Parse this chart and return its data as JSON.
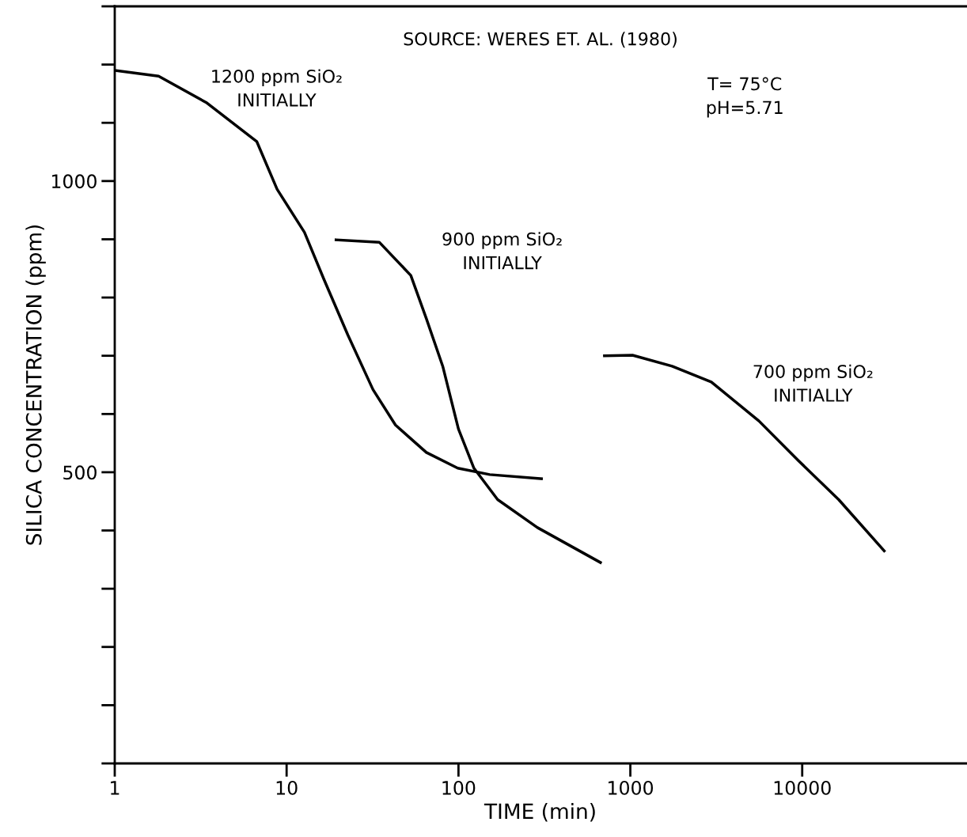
{
  "chart_data": {
    "type": "line",
    "xlabel": "TIME (min)",
    "ylabel": "SILICA CONCENTRATION (ppm)",
    "log": "x",
    "xlim": [
      1,
      90000
    ],
    "xticks": [
      1,
      10,
      100,
      1000,
      10000
    ],
    "ylim": [
      0,
      1300
    ],
    "yticks": [
      500,
      1000
    ],
    "grid": false,
    "marker": "none",
    "line_style": "solid",
    "series": [
      {
        "color": "#000000",
        "x": [
          1,
          1.8,
          3.4,
          6.7,
          8.8,
          12.7,
          16.5,
          22.7,
          31.8,
          43,
          65,
          99,
          152,
          304
        ],
        "values": [
          1190,
          1180,
          1135,
          1068,
          986,
          912,
          831,
          736,
          642,
          581,
          534,
          507,
          496,
          489
        ]
      },
      {
        "color": "#000000",
        "x": [
          19.4,
          34.6,
          52.8,
          65,
          81,
          100,
          123,
          169,
          288,
          670
        ],
        "values": [
          899,
          895,
          838,
          764,
          682,
          574,
          507,
          453,
          405,
          345
        ]
      },
      {
        "color": "#000000",
        "x": [
          707,
          1030,
          1750,
          2960,
          5600,
          9500,
          16300,
          30000
        ],
        "values": [
          700,
          701,
          682,
          655,
          588,
          520,
          453,
          365
        ]
      }
    ],
    "annotations": [
      "SOURCE: WERES ET. AL. (1980)",
      "T= 75°C\npH=5.71",
      "1200 ppm SiO₂\nINITIALLY",
      "900 ppm SiO₂\nINITIALLY",
      "700 ppm SiO₂\nINITIALLY"
    ]
  }
}
